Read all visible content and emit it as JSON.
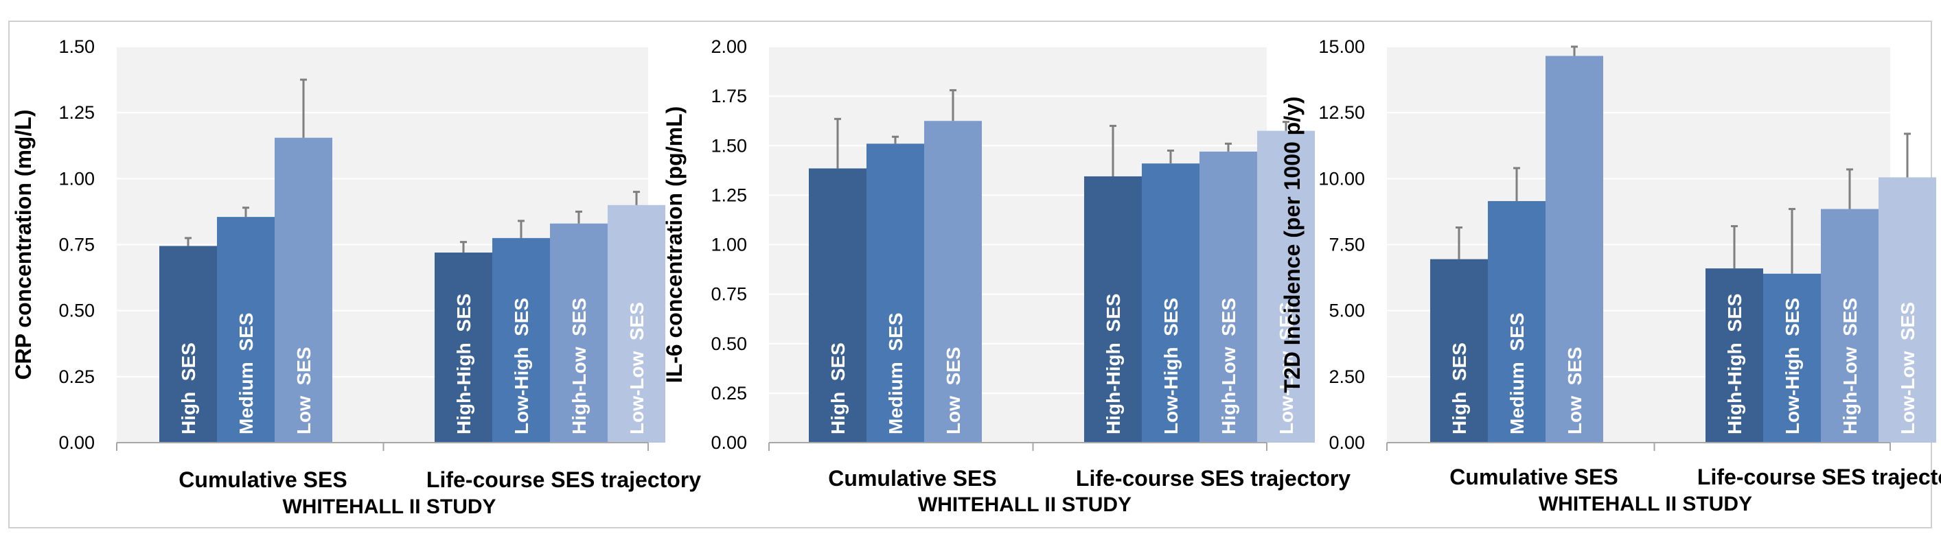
{
  "colors": {
    "plot_background": "#f2f2f2",
    "gridline": "#ffffff",
    "axis_line": "#a6a6a6",
    "error_bar": "#7f7f7f",
    "bar_colors": [
      "#3a6192",
      "#4a78b2",
      "#7c9bcb",
      "#b4c4e1"
    ]
  },
  "chart_data": [
    {
      "type": "bar",
      "ylabel": "CRP concentration (mg/L)",
      "xlabel": "WHITEHALL II STUDY",
      "ylim": [
        0,
        1.5
      ],
      "yticks": [
        "0.00",
        "0.25",
        "0.50",
        "0.75",
        "1.00",
        "1.25",
        "1.50"
      ],
      "grid": true,
      "groups": [
        {
          "name": "Cumulative SES",
          "bars": [
            {
              "label": "High  SES",
              "value": 0.745,
              "error": 0.03
            },
            {
              "label": "Medium  SES",
              "value": 0.855,
              "error": 0.035
            },
            {
              "label": "Low  SES",
              "value": 1.155,
              "error": 0.22
            }
          ]
        },
        {
          "name": "Life-course SES trajectory",
          "bars": [
            {
              "label": "High-High  SES",
              "value": 0.72,
              "error": 0.04
            },
            {
              "label": "Low-High  SES",
              "value": 0.775,
              "error": 0.065
            },
            {
              "label": "High-Low  SES",
              "value": 0.83,
              "error": 0.045
            },
            {
              "label": "Low-Low  SES",
              "value": 0.9,
              "error": 0.05
            }
          ]
        }
      ]
    },
    {
      "type": "bar",
      "ylabel": "IL-6 concentration (pg/mL)",
      "xlabel": "WHITEHALL II STUDY",
      "ylim": [
        0,
        2
      ],
      "yticks": [
        "0.00",
        "0.25",
        "0.50",
        "0.75",
        "1.00",
        "1.25",
        "1.50",
        "1.75",
        "2.00"
      ],
      "grid": true,
      "groups": [
        {
          "name": "Cumulative SES",
          "bars": [
            {
              "label": "High  SES",
              "value": 1.385,
              "error": 0.25
            },
            {
              "label": "Medium  SES",
              "value": 1.51,
              "error": 0.035
            },
            {
              "label": "Low  SES",
              "value": 1.625,
              "error": 0.155
            }
          ]
        },
        {
          "name": "Life-course SES trajectory",
          "bars": [
            {
              "label": "High-High  SES",
              "value": 1.345,
              "error": 0.255
            },
            {
              "label": "Low-High  SES",
              "value": 1.41,
              "error": 0.065
            },
            {
              "label": "High-Low  SES",
              "value": 1.47,
              "error": 0.04
            },
            {
              "label": "Low-Low  SES",
              "value": 1.575,
              "error": 0.045
            }
          ]
        }
      ]
    },
    {
      "type": "bar",
      "ylabel": "T2D Incidence (per 1000 p/y)",
      "xlabel": "WHITEHALL II STUDY",
      "ylim": [
        0,
        15
      ],
      "yticks": [
        "0.00",
        "2.50",
        "5.00",
        "7.50",
        "10.00",
        "12.50",
        "15.00"
      ],
      "grid": true,
      "groups": [
        {
          "name": "Cumulative SES",
          "bars": [
            {
              "label": "High  SES",
              "value": 6.95,
              "error": 1.2
            },
            {
              "label": "Medium  SES",
              "value": 9.15,
              "error": 1.25
            },
            {
              "label": "Low  SES",
              "value": 14.65,
              "error": 0.35
            }
          ]
        },
        {
          "name": "Life-course SES trajectory",
          "bars": [
            {
              "label": "High-High  SES",
              "value": 6.6,
              "error": 1.6
            },
            {
              "label": "Low-High  SES",
              "value": 6.4,
              "error": 2.45
            },
            {
              "label": "High-Low  SES",
              "value": 8.85,
              "error": 1.5
            },
            {
              "label": "Low-Low  SES",
              "value": 10.05,
              "error": 1.65
            }
          ]
        }
      ]
    }
  ]
}
